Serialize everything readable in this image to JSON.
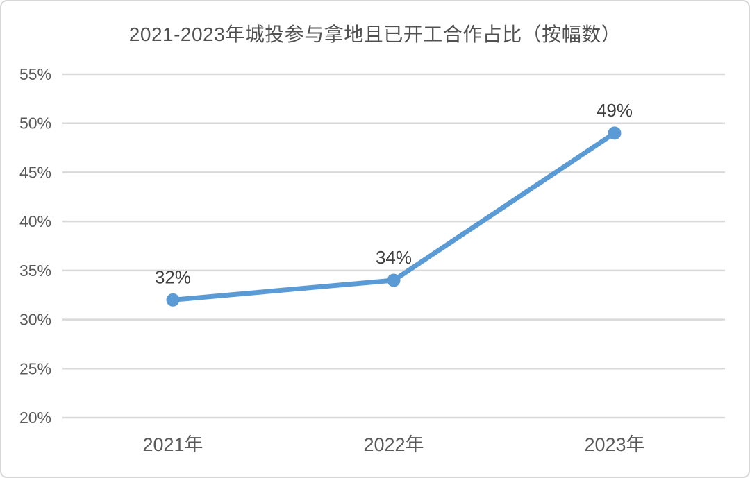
{
  "chart_data": {
    "type": "line",
    "title": "2021-2023年城投参与拿地且已开工合作占比（按幅数）",
    "categories": [
      "2021年",
      "2022年",
      "2023年"
    ],
    "values": [
      32,
      34,
      49
    ],
    "data_labels": [
      "32%",
      "34%",
      "49%"
    ],
    "ylim": [
      20,
      55
    ],
    "ytick_step": 5,
    "ytick_labels": [
      "20%",
      "25%",
      "30%",
      "35%",
      "40%",
      "45%",
      "50%",
      "55%"
    ],
    "grid": true,
    "legend": false,
    "colors": {
      "line": "#5B9BD5",
      "marker": "#5B9BD5",
      "grid": "#D9D9D9",
      "tick_text": "#595959",
      "data_label_text": "#404040",
      "title_text": "#515151",
      "card_border": "#D6D6D6",
      "background": "#FFFFFF"
    }
  }
}
